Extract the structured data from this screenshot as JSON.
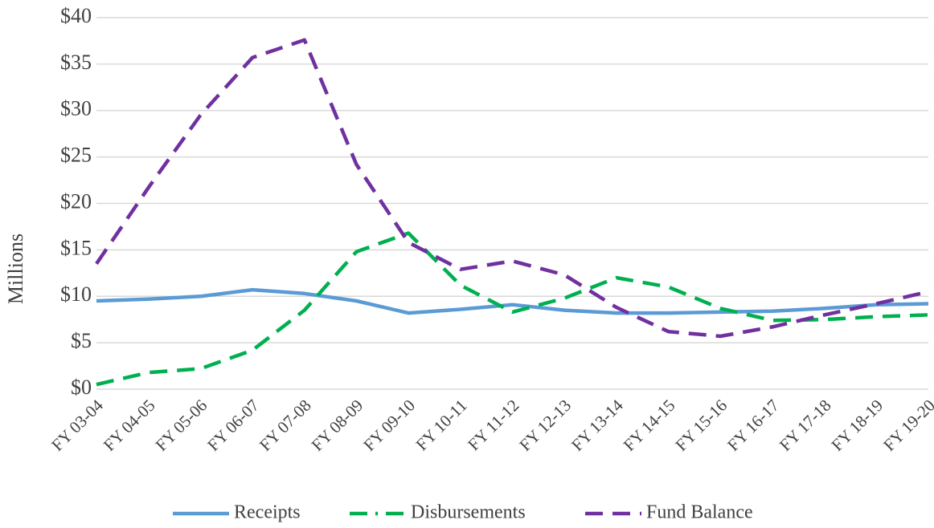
{
  "chart_data": {
    "type": "line",
    "y_label": "Millions",
    "categories": [
      "FY 03-04",
      "FY 04-05",
      "FY 05-06",
      "FY 06-07",
      "FY 07-08",
      "FY 08-09",
      "FY 09-10",
      "FY 10-11",
      "FY 11-12",
      "FY 12-13",
      "FY 13-14",
      "FY 14-15",
      "FY 15-16",
      "FY 16-17",
      "FY 17-18",
      "FY 18-19",
      "FY 19-20"
    ],
    "series": [
      {
        "name": "Receipts",
        "color": "#5b9bd5",
        "values": [
          9.5,
          9.7,
          10.0,
          10.7,
          10.3,
          9.5,
          8.2,
          8.6,
          9.1,
          8.5,
          8.2,
          8.2,
          8.3,
          8.4,
          8.7,
          9.1,
          9.2
        ]
      },
      {
        "name": "Disbursements",
        "color": "#00b050",
        "values": [
          0.5,
          1.8,
          2.2,
          4.2,
          8.5,
          14.8,
          16.8,
          11.2,
          8.3,
          9.8,
          12.0,
          11.0,
          8.7,
          7.4,
          7.5,
          7.8,
          8.0
        ]
      },
      {
        "name": "Fund Balance",
        "color": "#7030a0",
        "values": [
          13.5,
          21.7,
          29.5,
          35.7,
          37.6,
          24.2,
          15.8,
          12.9,
          13.8,
          12.3,
          8.8,
          6.2,
          5.7,
          6.7,
          8.0,
          9.2,
          10.5
        ]
      }
    ],
    "ylim": [
      0,
      40
    ],
    "yticks": [
      {
        "value": 0,
        "label": "$0"
      },
      {
        "value": 5,
        "label": "$5"
      },
      {
        "value": 10,
        "label": "$10"
      },
      {
        "value": 15,
        "label": "$15"
      },
      {
        "value": 20,
        "label": "$20"
      },
      {
        "value": 25,
        "label": "$25"
      },
      {
        "value": 30,
        "label": "$30"
      },
      {
        "value": 35,
        "label": "$35"
      },
      {
        "value": 40,
        "label": "$40"
      }
    ],
    "grid": true,
    "legend": "bottom"
  }
}
